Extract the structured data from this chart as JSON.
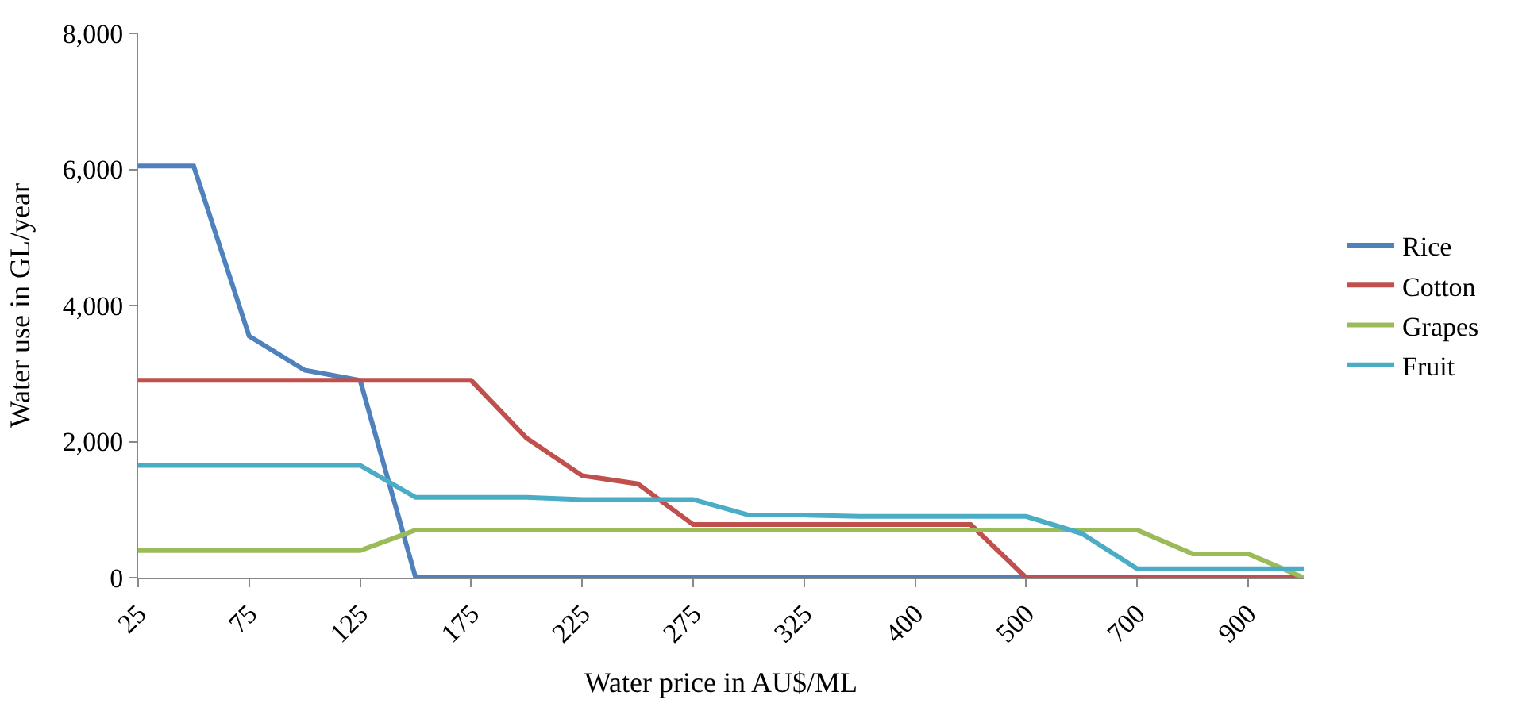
{
  "chart_data": {
    "type": "line",
    "xlabel": "Water price in AU$/ML",
    "ylabel": "Water use in GL/year",
    "categories": [
      "25",
      null,
      "75",
      null,
      "125",
      null,
      "175",
      null,
      "225",
      null,
      "275",
      null,
      "325",
      null,
      "400",
      null,
      "500",
      null,
      "700",
      null,
      "900",
      null
    ],
    "ylim": [
      0,
      8000
    ],
    "yticks": [
      0,
      {
        "value": 2000,
        "label": "2,000"
      },
      {
        "value": 4000,
        "label": "4,000"
      },
      {
        "value": 6000,
        "label": "6,000"
      },
      {
        "value": 8000,
        "label": "8,000"
      }
    ],
    "legend": "right",
    "marker": "none",
    "line_style": "solid",
    "series": [
      {
        "name": "Rice",
        "color": "#4f81bd",
        "values": [
          6050,
          6050,
          3550,
          3050,
          2900,
          0,
          0,
          0,
          0,
          0,
          0,
          0,
          0,
          0,
          0,
          0,
          0,
          0,
          null,
          null,
          null,
          null
        ]
      },
      {
        "name": "Cotton",
        "color": "#c0504d",
        "values": [
          2900,
          2900,
          2900,
          2900,
          2900,
          2900,
          2900,
          2050,
          1500,
          1380,
          780,
          780,
          780,
          780,
          780,
          780,
          0,
          0,
          0,
          0,
          0,
          0
        ]
      },
      {
        "name": "Grapes",
        "color": "#9bbb59",
        "values": [
          400,
          400,
          400,
          400,
          400,
          700,
          700,
          700,
          700,
          700,
          700,
          700,
          700,
          700,
          700,
          700,
          700,
          700,
          700,
          350,
          350,
          0
        ]
      },
      {
        "name": "Fruit",
        "color": "#4bacc6",
        "values": [
          1650,
          1650,
          1650,
          1650,
          1650,
          1180,
          1180,
          1180,
          1150,
          1150,
          1150,
          920,
          920,
          900,
          900,
          900,
          900,
          650,
          130,
          130,
          130,
          130
        ]
      }
    ]
  }
}
